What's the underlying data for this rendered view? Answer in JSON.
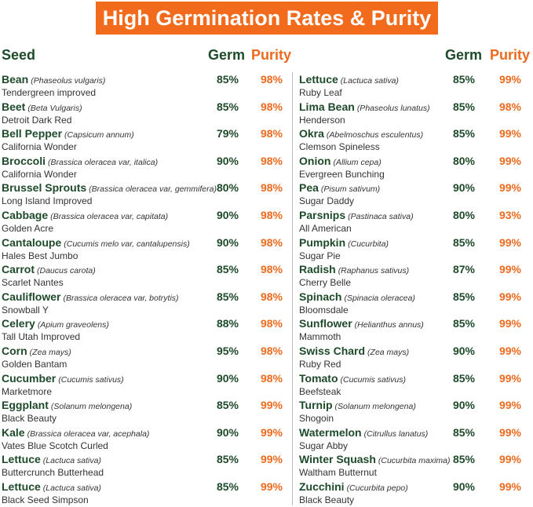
{
  "title": "High Germination Rates & Purity",
  "headers": {
    "seed": "Seed",
    "germ": "Germ",
    "purity": "Purity",
    "germ_right": "Germ",
    "purity_right": "Purity"
  },
  "columns": [
    [
      {
        "name": "Bean",
        "latin": "(Phaseolus vulgaris)",
        "variety": "Tendergreen improved",
        "germ": "85%",
        "purity": "98%"
      },
      {
        "name": "Beet",
        "latin": "(Beta Vulgaris)",
        "variety": "Detroit Dark Red",
        "germ": "85%",
        "purity": "98%"
      },
      {
        "name": "Bell Pepper",
        "latin": "(Capsicum annum)",
        "variety": "California Wonder",
        "germ": "79%",
        "purity": "98%"
      },
      {
        "name": "Broccoli",
        "latin": "(Brassica oleracea var, italica)",
        "variety": "California Wonder",
        "germ": "90%",
        "purity": "98%"
      },
      {
        "name": "Brussel Sprouts",
        "latin": "(Brassica oleracea var, gemmifera)",
        "variety": "Long Island Improved",
        "germ": "80%",
        "purity": "98%"
      },
      {
        "name": "Cabbage",
        "latin": "(Brassica oleracea var, capitata)",
        "variety": "Golden Acre",
        "germ": "90%",
        "purity": "98%"
      },
      {
        "name": "Cantaloupe",
        "latin": "(Cucumis melo var, cantalupensis)",
        "variety": "Hales Best Jumbo",
        "germ": "90%",
        "purity": "98%"
      },
      {
        "name": "Carrot",
        "latin": "(Daucus carota)",
        "variety": "Scarlet Nantes",
        "germ": "85%",
        "purity": "98%"
      },
      {
        "name": "Cauliflower",
        "latin": "(Brassica oleracea var, botrytis)",
        "variety": "Snowball Y",
        "germ": "85%",
        "purity": "98%"
      },
      {
        "name": "Celery",
        "latin": "(Apium graveolens)",
        "variety": "Tall Utah Improved",
        "germ": "88%",
        "purity": "98%"
      },
      {
        "name": "Corn",
        "latin": "(Zea mays)",
        "variety": "Golden Bantam",
        "germ": "95%",
        "purity": "98%"
      },
      {
        "name": "Cucumber",
        "latin": "(Cucumis sativus)",
        "variety": "Marketmore",
        "germ": "90%",
        "purity": "98%"
      },
      {
        "name": "Eggplant",
        "latin": "(Solanum melongena)",
        "variety": "Black Beauty",
        "germ": "85%",
        "purity": "99%"
      },
      {
        "name": "Kale",
        "latin": "(Brassica oleracea var, acephala)",
        "variety": "Vates Blue Scotch Curled",
        "germ": "90%",
        "purity": "99%"
      },
      {
        "name": "Lettuce",
        "latin": "(Lactuca sativa)",
        "variety": "Buttercrunch Butterhead",
        "germ": "85%",
        "purity": "99%"
      },
      {
        "name": "Lettuce",
        "latin": "(Lactuca sativa)",
        "variety": "Black Seed Simpson",
        "germ": "85%",
        "purity": "99%"
      }
    ],
    [
      {
        "name": "Lettuce",
        "latin": "(Lactuca sativa)",
        "variety": "Ruby Leaf",
        "germ": "85%",
        "purity": "99%"
      },
      {
        "name": "Lima Bean",
        "latin": "(Phaseolus lunatus)",
        "variety": "Henderson",
        "germ": "85%",
        "purity": "98%"
      },
      {
        "name": "Okra",
        "latin": "(Abelmoschus esculentus)",
        "variety": "Clemson Spineless",
        "germ": "85%",
        "purity": "99%"
      },
      {
        "name": "Onion",
        "latin": "(Allium cepa)",
        "variety": "Evergreen Bunching",
        "germ": "80%",
        "purity": "99%"
      },
      {
        "name": "Pea",
        "latin": "(Pisum sativum)",
        "variety": "Sugar Daddy",
        "germ": "90%",
        "purity": "99%"
      },
      {
        "name": "Parsnips",
        "latin": "(Pastinaca sativa)",
        "variety": "All American",
        "germ": "80%",
        "purity": "93%"
      },
      {
        "name": "Pumpkin",
        "latin": "(Cucurbita)",
        "variety": "Sugar Pie",
        "germ": "85%",
        "purity": "99%"
      },
      {
        "name": "Radish",
        "latin": "(Raphanus sativus)",
        "variety": "Cherry Belle",
        "germ": "87%",
        "purity": "99%"
      },
      {
        "name": "Spinach",
        "latin": "(Spinacia oleracea)",
        "variety": "Bloomsdale",
        "germ": "85%",
        "purity": "99%"
      },
      {
        "name": "Sunflower",
        "latin": "(Helianthus annus)",
        "variety": "Mammoth",
        "germ": "85%",
        "purity": "99%"
      },
      {
        "name": "Swiss Chard",
        "latin": "(Zea mays)",
        "variety": "Ruby Red",
        "germ": "90%",
        "purity": "99%"
      },
      {
        "name": "Tomato",
        "latin": "(Cucumis sativus)",
        "variety": "Beefsteak",
        "germ": "85%",
        "purity": "99%"
      },
      {
        "name": "Turnip",
        "latin": "(Solanum melongena)",
        "variety": "Shogoin",
        "germ": "90%",
        "purity": "99%"
      },
      {
        "name": "Watermelon",
        "latin": "(Citrullus lanatus)",
        "variety": "Sugar Abby",
        "germ": "85%",
        "purity": "99%"
      },
      {
        "name": "Winter Squash",
        "latin": "(Cucurbita maxima)",
        "variety": "Waltham Butternut",
        "germ": "85%",
        "purity": "99%"
      },
      {
        "name": "Zucchini",
        "latin": "(Cucurbita pepo)",
        "variety": "Black Beauty",
        "germ": "90%",
        "purity": "99%"
      }
    ]
  ]
}
